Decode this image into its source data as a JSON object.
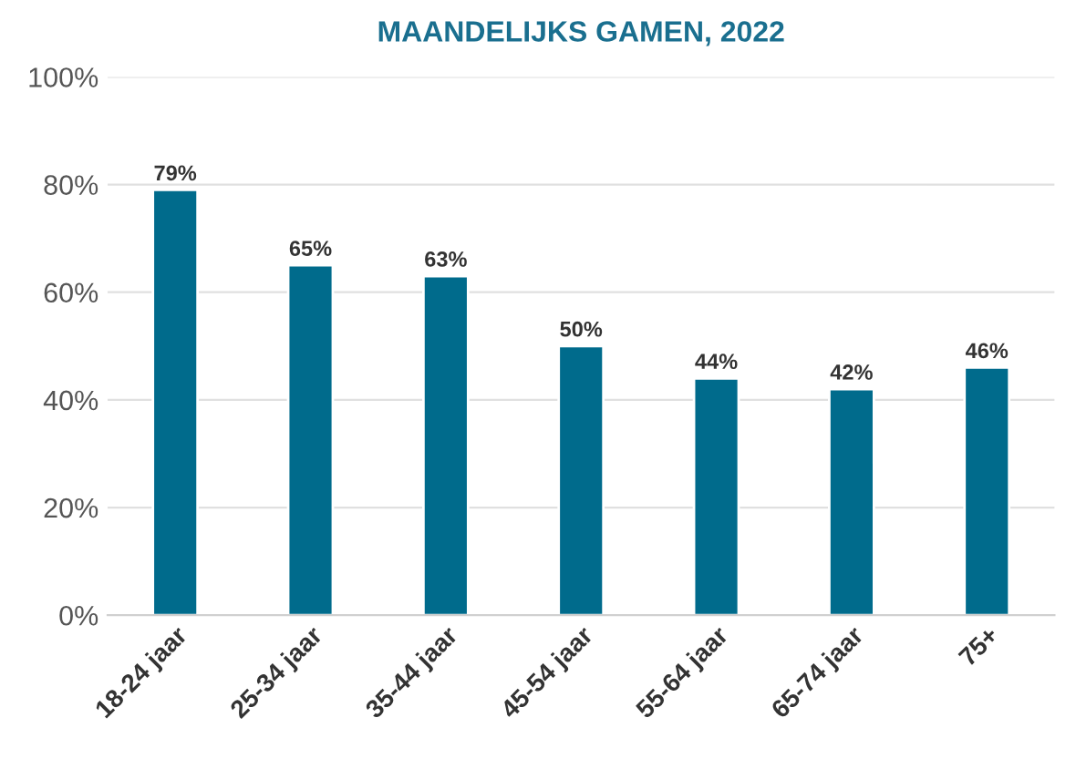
{
  "chart_data": {
    "type": "bar",
    "title": "MAANDELIJKS GAMEN, 2022",
    "categories": [
      "18-24 jaar",
      "25-34 jaar",
      "35-44 jaar",
      "45-54 jaar",
      "55-64 jaar",
      "65-74 jaar",
      "75+"
    ],
    "values": [
      79,
      65,
      63,
      50,
      44,
      42,
      46
    ],
    "value_labels": [
      "79%",
      "65%",
      "63%",
      "50%",
      "44%",
      "42%",
      "46%"
    ],
    "color": "#006b8c",
    "ylim": [
      0,
      100
    ],
    "yticks": [
      {
        "value": 0,
        "label": "0%"
      },
      {
        "value": 20,
        "label": "20%"
      },
      {
        "value": 40,
        "label": "40%"
      },
      {
        "value": 60,
        "label": "60%"
      },
      {
        "value": 80,
        "label": "80%"
      },
      {
        "value": 100,
        "label": "100%"
      }
    ],
    "grid": "y"
  }
}
